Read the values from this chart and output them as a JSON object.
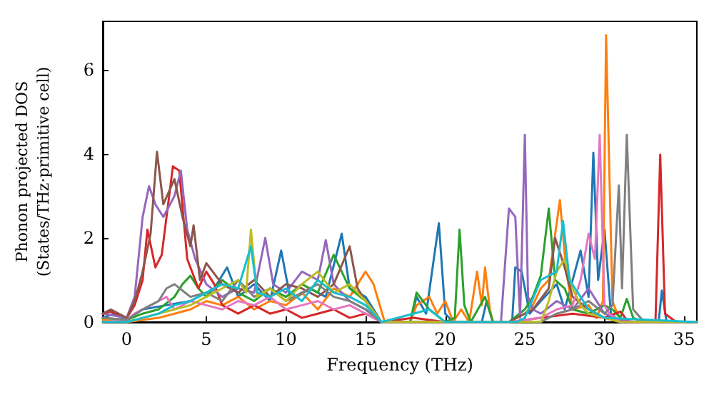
{
  "chart_data": {
    "type": "line",
    "xlabel": "Frequency (THz)",
    "ylabel": "Phonon projected DOS\n(States/THz·primitive cell)",
    "xlim": [
      -1.5,
      35.8
    ],
    "ylim": [
      0,
      7.15
    ],
    "xticks": [
      0,
      5,
      10,
      15,
      20,
      25,
      30,
      35
    ],
    "yticks": [
      0,
      2,
      4,
      6
    ],
    "grid": false,
    "marker": "none",
    "line_style": "solid",
    "series": [
      {
        "color": "#1f77b4",
        "x": [
          -1.5,
          -0.8,
          0,
          1,
          2.5,
          4,
          5.5,
          6.3,
          7,
          8,
          9,
          9.7,
          10.3,
          11.5,
          12.5,
          13.5,
          14,
          15,
          16,
          17.8,
          18.2,
          18.8,
          19.6,
          20,
          20.5,
          22.3,
          22.6,
          23,
          24.2,
          24.4,
          24.8,
          25.3,
          26,
          27,
          27.5,
          28.5,
          29,
          29.3,
          29.6,
          30,
          30.4,
          31,
          33.4,
          33.6,
          33.9,
          35.8
        ],
        "values": [
          0.1,
          0.2,
          0.05,
          0.3,
          0.4,
          0.5,
          0.8,
          1.3,
          0.6,
          0.9,
          0.5,
          1.7,
          0.5,
          0.8,
          0.6,
          2.1,
          0.8,
          0.6,
          0,
          0,
          0.6,
          0.2,
          2.35,
          0.2,
          0,
          0,
          0.5,
          0,
          0,
          1.3,
          1.2,
          0.2,
          0.5,
          0.9,
          0.3,
          1.7,
          0.6,
          4.03,
          1.0,
          2.2,
          0.2,
          0,
          0,
          0.75,
          0,
          0
        ]
      },
      {
        "color": "#ff7f0e",
        "x": [
          -1.5,
          0,
          1,
          2,
          3,
          4,
          5,
          6,
          7,
          8,
          9,
          10,
          11,
          12,
          13,
          14,
          15,
          15.5,
          16.2,
          17.8,
          18.2,
          19,
          19.5,
          20,
          20.5,
          21,
          21.5,
          22,
          22.3,
          22.5,
          22.8,
          23,
          24,
          25,
          25.5,
          26,
          26.5,
          27.2,
          27.6,
          28,
          29,
          29.5,
          29.9,
          30.1,
          30.5,
          30.8,
          31.2
        ],
        "values": [
          0.05,
          0,
          0.05,
          0.1,
          0.2,
          0.3,
          0.5,
          0.4,
          0.6,
          0.3,
          0.5,
          0.4,
          0.7,
          0.3,
          0.8,
          0.6,
          1.2,
          0.9,
          0,
          0,
          0.4,
          0.6,
          0.2,
          0.5,
          0,
          0.3,
          0,
          1.2,
          0.4,
          1.3,
          0.3,
          0,
          0,
          0.2,
          0.4,
          0.8,
          1.0,
          2.9,
          1.2,
          0.3,
          0.4,
          0.1,
          0.5,
          6.82,
          0.5,
          0.2,
          0
        ]
      },
      {
        "color": "#2ca02c",
        "x": [
          -1.5,
          0,
          1,
          2,
          3,
          3.5,
          4,
          4.5,
          5,
          6,
          7,
          8,
          9,
          10,
          11,
          12,
          13,
          14,
          15,
          16,
          17.8,
          18.2,
          19,
          20,
          20.6,
          20.9,
          21.2,
          21.6,
          22.5,
          23,
          24,
          25,
          25.5,
          26,
          26.5,
          26.9,
          27.5,
          28,
          29,
          30,
          30.5,
          31,
          31.4,
          31.8,
          32.5,
          35.8
        ],
        "values": [
          0.1,
          0.05,
          0.2,
          0.3,
          0.6,
          0.9,
          1.1,
          0.8,
          0.6,
          1.0,
          0.7,
          0.5,
          0.8,
          0.6,
          0.9,
          0.7,
          1.6,
          0.8,
          0.5,
          0,
          0,
          0.7,
          0.3,
          0,
          0.1,
          2.2,
          0.4,
          0,
          0.6,
          0,
          0,
          0.3,
          0.6,
          1.1,
          2.7,
          1.0,
          0.8,
          0.3,
          0.2,
          0.4,
          0.3,
          0.1,
          0.55,
          0.1,
          0,
          0
        ]
      },
      {
        "color": "#d62728",
        "x": [
          -1.5,
          -1,
          0,
          0.5,
          1,
          1.3,
          1.8,
          2.2,
          2.9,
          3.3,
          3.8,
          4.5,
          5,
          5.5,
          6,
          7,
          8,
          9,
          10,
          11,
          12,
          13,
          14,
          15,
          16,
          18,
          20,
          22,
          24,
          26,
          28,
          30,
          31,
          31.5,
          32,
          33.2,
          33.5,
          33.8,
          34.5,
          35.8
        ],
        "values": [
          0.2,
          0.25,
          0.1,
          0.4,
          1.0,
          2.2,
          1.3,
          1.6,
          3.7,
          3.6,
          1.5,
          0.8,
          1.2,
          0.9,
          0.4,
          0.2,
          0.4,
          0.2,
          0.3,
          0.1,
          0.2,
          0.3,
          0.1,
          0.2,
          0,
          0.1,
          0,
          0,
          0,
          0.1,
          0.2,
          0.1,
          0.25,
          0,
          0,
          0,
          3.98,
          0.2,
          0,
          0
        ]
      },
      {
        "color": "#9467bd",
        "x": [
          -1.5,
          0,
          0.5,
          1,
          1.4,
          1.8,
          2.3,
          3,
          3.4,
          3.8,
          4.3,
          5,
          6,
          7,
          8,
          8.7,
          9.2,
          10,
          11,
          12,
          12.5,
          13,
          14,
          15,
          16,
          18,
          20,
          22,
          23.5,
          24,
          24.4,
          24.7,
          25,
          25.2,
          25.5,
          26,
          27,
          28,
          29,
          30,
          31,
          32,
          35.8
        ],
        "values": [
          0.2,
          0.1,
          0.6,
          2.5,
          3.23,
          2.8,
          2.5,
          3.0,
          3.6,
          2.2,
          1.5,
          0.9,
          0.6,
          0.8,
          0.7,
          2.0,
          0.9,
          0.7,
          1.2,
          1.0,
          1.95,
          0.9,
          0.5,
          0.3,
          0,
          0,
          0,
          0,
          0,
          2.7,
          2.5,
          0.1,
          4.45,
          0.6,
          0.3,
          0.2,
          0.5,
          0.3,
          0.8,
          0.2,
          0.05,
          0,
          0
        ]
      },
      {
        "color": "#8c564b",
        "x": [
          -1.5,
          -1,
          0,
          0.5,
          1,
          1.5,
          1.9,
          2.3,
          3,
          3.5,
          4,
          4.2,
          4.6,
          5,
          6,
          7,
          8,
          9,
          10,
          11,
          12,
          13,
          14,
          14.5,
          15,
          16,
          18,
          22,
          24,
          25.5,
          26.5,
          26.9,
          27.5,
          28,
          29,
          30,
          31,
          35.8
        ],
        "values": [
          0.2,
          0.3,
          0.1,
          0.5,
          1.2,
          2.1,
          4.05,
          2.8,
          3.4,
          2.5,
          1.8,
          2.3,
          1.0,
          1.4,
          0.9,
          0.7,
          1.0,
          0.6,
          0.9,
          0.8,
          0.6,
          0.9,
          1.8,
          0.8,
          0.5,
          0,
          0,
          0,
          0,
          0.3,
          0.8,
          2.0,
          1.3,
          0.6,
          0.3,
          0.1,
          0,
          0
        ]
      },
      {
        "color": "#e377c2",
        "x": [
          -1.5,
          0,
          0.5,
          1,
          1.5,
          2,
          2.5,
          3,
          4,
          5,
          6,
          7,
          8,
          9,
          10,
          11,
          12,
          13,
          14,
          15,
          16,
          24,
          26,
          27,
          28,
          28.5,
          29,
          29.4,
          29.7,
          30,
          30.3,
          31,
          32,
          35.8
        ],
        "values": [
          0,
          0.05,
          0.2,
          0.3,
          0.4,
          0.5,
          0.6,
          0.3,
          0.5,
          0.4,
          0.3,
          0.5,
          0.4,
          0.6,
          0.3,
          0.4,
          0.5,
          0.3,
          0.4,
          0.2,
          0,
          0,
          0.1,
          0.3,
          0.4,
          1.0,
          2.1,
          1.5,
          4.45,
          0.4,
          0.2,
          0,
          0,
          0
        ]
      },
      {
        "color": "#7f7f7f",
        "x": [
          -1.5,
          0,
          1,
          2,
          2.5,
          3,
          4,
          5,
          6,
          7,
          8,
          9,
          10,
          11,
          12,
          13,
          14,
          15,
          16,
          26,
          27,
          28,
          29,
          30,
          30.5,
          30.9,
          31.1,
          31.4,
          31.8,
          32.5,
          35.8
        ],
        "values": [
          0.1,
          0.05,
          0.3,
          0.5,
          0.8,
          0.9,
          0.6,
          0.7,
          0.5,
          1.0,
          0.6,
          0.8,
          0.5,
          0.7,
          0.9,
          0.6,
          0.5,
          0.3,
          0,
          0,
          0.2,
          0.3,
          0.5,
          0.2,
          0.4,
          3.25,
          0.8,
          4.45,
          0.3,
          0,
          0
        ]
      },
      {
        "color": "#bcbd22",
        "x": [
          -1.5,
          0,
          1,
          2,
          3,
          4,
          5,
          6,
          7,
          7.5,
          7.8,
          8.2,
          9,
          10,
          11,
          12,
          13,
          14,
          15,
          16,
          26,
          26.5,
          27,
          27.5,
          28,
          28.5,
          29,
          30,
          31,
          35.8
        ],
        "values": [
          0,
          0,
          0.1,
          0.2,
          0.3,
          0.4,
          0.6,
          0.8,
          1.0,
          0.7,
          2.2,
          0.6,
          0.8,
          0.5,
          0.9,
          1.2,
          0.7,
          0.9,
          0.5,
          0,
          0,
          0.5,
          1.2,
          1.5,
          0.8,
          0.4,
          0.2,
          0.1,
          0,
          0
        ]
      },
      {
        "color": "#17becf",
        "x": [
          -1.5,
          0,
          1,
          2,
          3,
          4,
          5,
          6,
          7,
          7.8,
          8.2,
          9,
          10,
          11,
          12,
          13,
          14,
          15,
          16,
          18,
          19,
          20,
          24.5,
          25,
          26,
          27,
          27.4,
          27.8,
          28.5,
          29,
          30,
          35.8
        ],
        "values": [
          0,
          0,
          0.1,
          0.2,
          0.4,
          0.5,
          0.7,
          0.9,
          0.8,
          1.8,
          0.7,
          0.6,
          0.8,
          0.5,
          1.0,
          0.7,
          0.6,
          0.4,
          0,
          0.2,
          0.3,
          0,
          0,
          0.1,
          1.0,
          1.2,
          2.4,
          1.0,
          0.6,
          0.3,
          0.1,
          0
        ]
      }
    ]
  }
}
